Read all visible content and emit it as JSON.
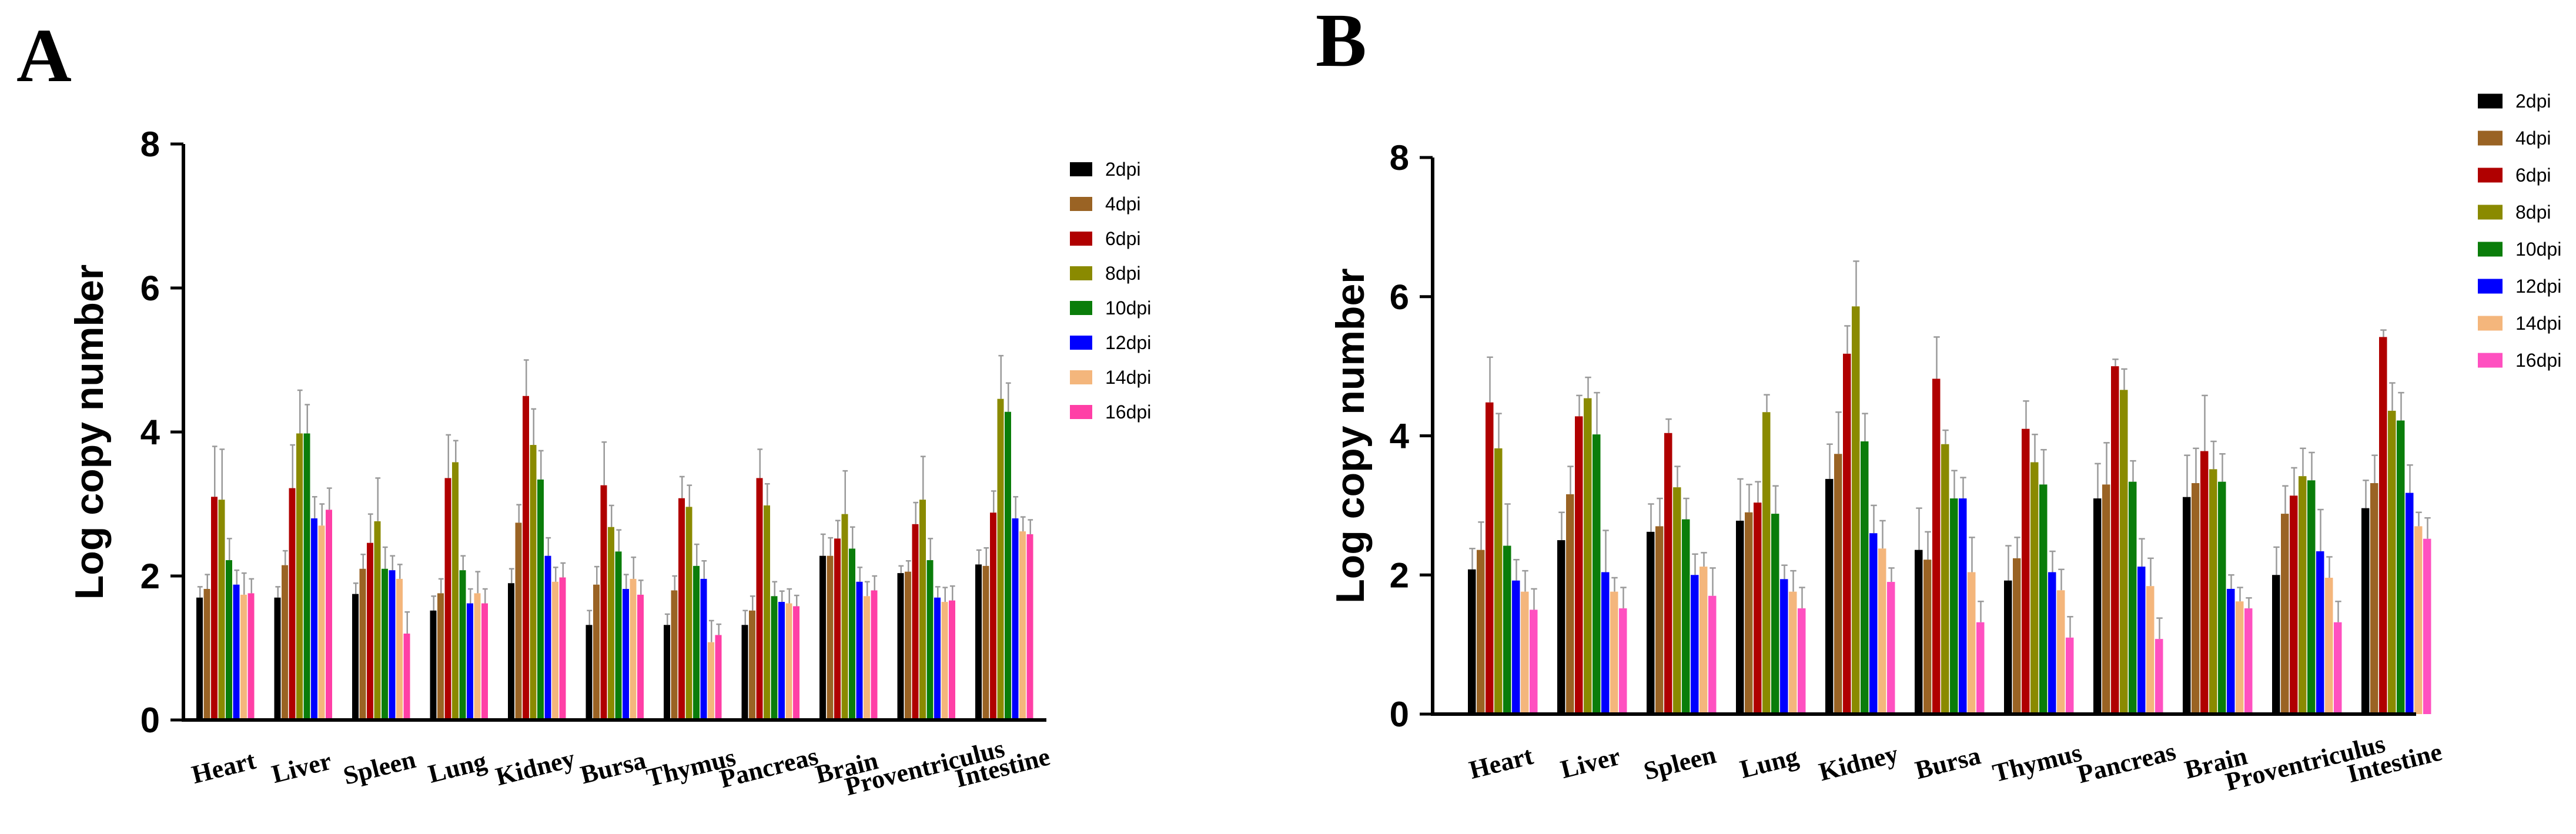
{
  "chart_data": [
    {
      "panel": "A",
      "type": "bar",
      "title": "",
      "xlabel": "",
      "ylabel": "Log copy number",
      "ylim": [
        0,
        8
      ],
      "yticks": [
        0,
        2,
        4,
        6,
        8
      ],
      "legend_position": "top-right",
      "categories": [
        "Heart",
        "Liver",
        "Spleen",
        "Lung",
        "Kidney",
        "Bursa",
        "Thymus",
        "Pancreas",
        "Brain",
        "Proventriculus",
        "Intestine"
      ],
      "series": [
        {
          "name": "2dpi",
          "color": "#000000",
          "values": [
            1.7,
            1.7,
            1.75,
            1.52,
            1.9,
            1.32,
            1.32,
            1.32,
            2.28,
            2.04,
            2.16
          ],
          "errors": [
            0.15,
            0.15,
            0.15,
            0.2,
            0.2,
            0.2,
            0.15,
            0.2,
            0.3,
            0.1,
            0.2
          ]
        },
        {
          "name": "4dpi",
          "color": "#9a6324",
          "values": [
            1.82,
            2.15,
            2.1,
            1.76,
            2.74,
            1.88,
            1.8,
            1.52,
            2.28,
            2.06,
            2.14
          ],
          "errors": [
            0.2,
            0.2,
            0.2,
            0.2,
            0.25,
            0.25,
            0.2,
            0.2,
            0.25,
            0.15,
            0.25
          ]
        },
        {
          "name": "6dpi",
          "color": "#b00000",
          "values": [
            3.1,
            3.22,
            2.46,
            3.36,
            4.5,
            3.26,
            3.08,
            3.36,
            2.52,
            2.72,
            2.88
          ],
          "errors": [
            0.7,
            0.6,
            0.4,
            0.6,
            0.5,
            0.6,
            0.3,
            0.4,
            0.25,
            0.3,
            0.3
          ]
        },
        {
          "name": "8dpi",
          "color": "#8a8a00",
          "values": [
            3.06,
            3.98,
            2.76,
            3.58,
            3.82,
            2.68,
            2.96,
            2.98,
            2.86,
            3.06,
            4.46
          ],
          "errors": [
            0.7,
            0.6,
            0.6,
            0.3,
            0.5,
            0.3,
            0.3,
            0.3,
            0.6,
            0.6,
            0.6
          ]
        },
        {
          "name": "10dpi",
          "color": "#0a7d0a",
          "values": [
            2.22,
            3.98,
            2.1,
            2.08,
            3.34,
            2.34,
            2.14,
            1.72,
            2.38,
            2.22,
            4.28
          ],
          "errors": [
            0.3,
            0.4,
            0.3,
            0.2,
            0.4,
            0.3,
            0.3,
            0.2,
            0.3,
            0.3,
            0.4
          ]
        },
        {
          "name": "12dpi",
          "color": "#0000ff",
          "values": [
            1.88,
            2.8,
            2.08,
            1.62,
            2.28,
            1.82,
            1.96,
            1.64,
            1.92,
            1.7,
            2.8
          ],
          "errors": [
            0.2,
            0.3,
            0.2,
            0.2,
            0.25,
            0.2,
            0.25,
            0.15,
            0.2,
            0.15,
            0.3
          ]
        },
        {
          "name": "14dpi",
          "color": "#f4b67c",
          "values": [
            1.74,
            2.7,
            1.96,
            1.76,
            1.92,
            1.96,
            1.08,
            1.62,
            1.72,
            1.64,
            2.62
          ],
          "errors": [
            0.3,
            0.3,
            0.2,
            0.3,
            0.2,
            0.3,
            0.3,
            0.2,
            0.2,
            0.2,
            0.2
          ]
        },
        {
          "name": "16dpi",
          "color": "#ff3fa6",
          "values": [
            1.76,
            2.92,
            1.2,
            1.62,
            1.98,
            1.74,
            1.18,
            1.58,
            1.8,
            1.66,
            2.58
          ],
          "errors": [
            0.2,
            0.3,
            0.3,
            0.2,
            0.2,
            0.2,
            0.15,
            0.15,
            0.2,
            0.2,
            0.2
          ]
        }
      ]
    },
    {
      "panel": "B",
      "type": "bar",
      "title": "",
      "xlabel": "",
      "ylabel": "Log copy number",
      "ylim": [
        0,
        8
      ],
      "yticks": [
        0,
        2,
        4,
        6,
        8
      ],
      "legend_position": "top-right",
      "categories": [
        "Heart",
        "Liver",
        "Spleen",
        "Lung",
        "Kidney",
        "Bursa",
        "Thymus",
        "Pancreas",
        "Brain",
        "Proventriculus",
        "Intestine"
      ],
      "series": [
        {
          "name": "2dpi",
          "color": "#000000",
          "values": [
            2.08,
            2.5,
            2.62,
            2.78,
            3.38,
            2.36,
            1.92,
            3.1,
            3.12,
            2.0,
            2.96
          ],
          "errors": [
            0.3,
            0.4,
            0.4,
            0.6,
            0.5,
            0.6,
            0.5,
            0.5,
            0.6,
            0.4,
            0.4
          ]
        },
        {
          "name": "4dpi",
          "color": "#9a6324",
          "values": [
            2.36,
            3.16,
            2.7,
            2.9,
            3.74,
            2.22,
            2.24,
            3.3,
            3.32,
            2.88,
            3.32
          ],
          "errors": [
            0.4,
            0.4,
            0.4,
            0.4,
            0.6,
            0.4,
            0.3,
            0.6,
            0.5,
            0.4,
            0.4
          ]
        },
        {
          "name": "6dpi",
          "color": "#b00000",
          "values": [
            4.48,
            4.28,
            4.04,
            3.04,
            5.18,
            4.82,
            4.1,
            5.0,
            3.78,
            3.14,
            5.42
          ],
          "errors": [
            0.65,
            0.3,
            0.2,
            0.3,
            0.4,
            0.6,
            0.4,
            0.1,
            0.8,
            0.4,
            0.1
          ]
        },
        {
          "name": "8dpi",
          "color": "#8a8a00",
          "values": [
            3.82,
            4.54,
            3.26,
            4.34,
            5.86,
            3.88,
            3.62,
            4.66,
            3.52,
            3.42,
            4.36
          ],
          "errors": [
            0.5,
            0.3,
            0.3,
            0.25,
            0.65,
            0.2,
            0.4,
            0.3,
            0.4,
            0.4,
            0.4
          ]
        },
        {
          "name": "10dpi",
          "color": "#0a7d0a",
          "values": [
            2.42,
            4.02,
            2.8,
            2.88,
            3.92,
            3.1,
            3.3,
            3.34,
            3.34,
            3.36,
            4.22
          ],
          "errors": [
            0.6,
            0.6,
            0.3,
            0.4,
            0.4,
            0.4,
            0.5,
            0.3,
            0.4,
            0.4,
            0.4
          ]
        },
        {
          "name": "12dpi",
          "color": "#0000ff",
          "values": [
            1.92,
            2.04,
            2.0,
            1.94,
            2.6,
            3.1,
            2.04,
            2.12,
            1.8,
            2.34,
            3.18
          ],
          "errors": [
            0.3,
            0.6,
            0.3,
            0.2,
            0.4,
            0.3,
            0.3,
            0.4,
            0.2,
            0.6,
            0.4
          ]
        },
        {
          "name": "14dpi",
          "color": "#f4b67c",
          "values": [
            1.76,
            1.76,
            2.12,
            1.76,
            2.38,
            2.04,
            1.78,
            1.84,
            1.62,
            1.96,
            2.7
          ],
          "errors": [
            0.3,
            0.2,
            0.2,
            0.3,
            0.4,
            0.5,
            0.3,
            0.4,
            0.2,
            0.3,
            0.2
          ]
        },
        {
          "name": "16dpi",
          "color": "#ff50c0",
          "values": [
            1.5,
            1.52,
            1.7,
            1.52,
            1.9,
            1.32,
            1.1,
            1.08,
            1.52,
            1.32,
            2.52
          ],
          "errors": [
            0.3,
            0.3,
            0.4,
            0.3,
            0.2,
            0.3,
            0.3,
            0.3,
            0.15,
            0.3,
            0.3
          ]
        }
      ]
    }
  ]
}
